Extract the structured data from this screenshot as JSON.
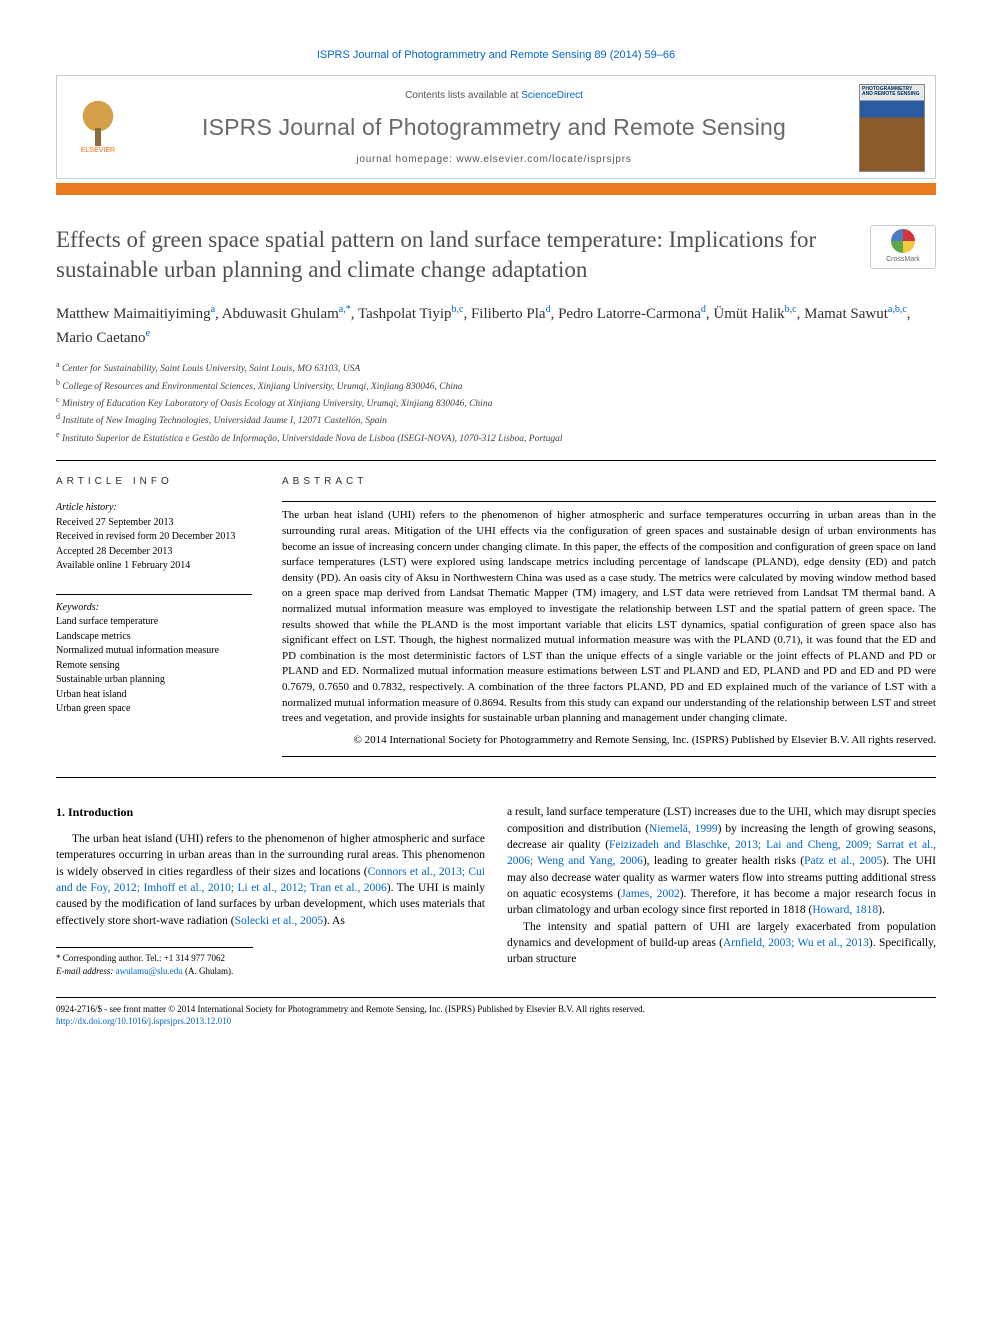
{
  "citation": "ISPRS Journal of Photogrammetry and Remote Sensing 89 (2014) 59–66",
  "header": {
    "contents_prefix": "Contents lists available at ",
    "contents_link": "ScienceDirect",
    "journal_name": "ISPRS Journal of Photogrammetry and Remote Sensing",
    "homepage_label": "journal homepage: ",
    "homepage_url": "www.elsevier.com/locate/isprsjprs",
    "publisher_name": "ELSEVIER",
    "cover_text": "PHOTOGRAMMETRY AND REMOTE SENSING"
  },
  "crossmark_label": "CrossMark",
  "title": "Effects of green space spatial pattern on land surface temperature: Implications for sustainable urban planning and climate change adaptation",
  "authors_html": "Matthew Maimaitiyiming<sup>a</sup>, Abduwasit Ghulam<sup>a,*</sup>, Tashpolat Tiyip<sup>b,c</sup>, Filiberto Pla<sup>d</sup>, Pedro Latorre-Carmona<sup>d</sup>, Ümüt Halik<sup>b,c</sup>, Mamat Sawut<sup>a,b,c</sup>, Mario Caetano<sup>e</sup>",
  "affiliations": [
    "a Center for Sustainability, Saint Louis University, Saint Louis, MO 63103, USA",
    "b College of Resources and Environmental Sciences, Xinjiang University, Urumqi, Xinjiang 830046, China",
    "c Ministry of Education Key Laboratory of Oasis Ecology at Xinjiang University, Urumqi, Xinjiang 830046, China",
    "d Institute of New Imaging Technologies, Universidad Jaume I, 12071 Castellón, Spain",
    "e Instituto Superior de Estatística e Gestão de Informação, Universidade Nova de Lisboa (ISEGI-NOVA), 1070-312 Lisboa, Portugal"
  ],
  "info_head": "ARTICLE INFO",
  "abstract_head": "ABSTRACT",
  "history": {
    "label": "Article history:",
    "received": "Received 27 September 2013",
    "revised": "Received in revised form 20 December 2013",
    "accepted": "Accepted 28 December 2013",
    "online": "Available online 1 February 2014"
  },
  "keywords_label": "Keywords:",
  "keywords": [
    "Land surface temperature",
    "Landscape metrics",
    "Normalized mutual information measure",
    "Remote sensing",
    "Sustainable urban planning",
    "Urban heat island",
    "Urban green space"
  ],
  "abstract": "The urban heat island (UHI) refers to the phenomenon of higher atmospheric and surface temperatures occurring in urban areas than in the surrounding rural areas. Mitigation of the UHI effects via the configuration of green spaces and sustainable design of urban environments has become an issue of increasing concern under changing climate. In this paper, the effects of the composition and configuration of green space on land surface temperatures (LST) were explored using landscape metrics including percentage of landscape (PLAND), edge density (ED) and patch density (PD). An oasis city of Aksu in Northwestern China was used as a case study. The metrics were calculated by moving window method based on a green space map derived from Landsat Thematic Mapper (TM) imagery, and LST data were retrieved from Landsat TM thermal band. A normalized mutual information measure was employed to investigate the relationship between LST and the spatial pattern of green space. The results showed that while the PLAND is the most important variable that elicits LST dynamics, spatial configuration of green space also has significant effect on LST. Though, the highest normalized mutual information measure was with the PLAND (0.71), it was found that the ED and PD combination is the most deterministic factors of LST than the unique effects of a single variable or the joint effects of PLAND and PD or PLAND and ED. Normalized mutual information measure estimations between LST and PLAND and ED, PLAND and PD and ED and PD were 0.7679, 0.7650 and 0.7832, respectively. A combination of the three factors PLAND, PD and ED explained much of the variance of LST with a normalized mutual information measure of 0.8694. Results from this study can expand our understanding of the relationship between LST and street trees and vegetation, and provide insights for sustainable urban planning and management under changing climate.",
  "copyright": "© 2014 International Society for Photogrammetry and Remote Sensing, Inc. (ISPRS) Published by Elsevier B.V. All rights reserved.",
  "intro_heading": "1. Introduction",
  "intro_col1": "The urban heat island (UHI) refers to the phenomenon of higher atmospheric and surface temperatures occurring in urban areas than in the surrounding rural areas. This phenomenon is widely observed in cities regardless of their sizes and locations (<span class=\"ref-link\">Connors et al., 2013; Cui and de Foy, 2012; Imhoff et al., 2010; Li et al., 2012; Tran et al., 2006</span>). The UHI is mainly caused by the modification of land surfaces by urban development, which uses materials that effectively store short-wave radiation (<span class=\"ref-link\">Solecki et al., 2005</span>). As",
  "intro_col2_p1": "a result, land surface temperature (LST) increases due to the UHI, which may disrupt species composition and distribution (<span class=\"ref-link\">Niemelä, 1999</span>) by increasing the length of growing seasons, decrease air quality (<span class=\"ref-link\">Feizizadeh and Blaschke, 2013; Lai and Cheng, 2009; Sarrat et al., 2006; Weng and Yang, 2006</span>), leading to greater health risks (<span class=\"ref-link\">Patz et al., 2005</span>). The UHI may also decrease water quality as warmer waters flow into streams putting additional stress on aquatic ecosystems (<span class=\"ref-link\">James, 2002</span>). Therefore, it has become a major research focus in urban climatology and urban ecology since first reported in 1818 (<span class=\"ref-link\">Howard, 1818</span>).",
  "intro_col2_p2": "The intensity and spatial pattern of UHI are largely exacerbated from population dynamics and development of build-up areas (<span class=\"ref-link\">Arnfield, 2003; Wu et al., 2013</span>). Specifically, urban structure",
  "corresponding": {
    "line1": "* Corresponding author. Tel.: +1 314 977 7062",
    "line2_label": "E-mail address: ",
    "email": "awulamu@slu.edu",
    "line2_suffix": " (A. Ghulam)."
  },
  "footer": {
    "issn": "0924-2716/$ - see front matter © 2014 International Society for Photogrammetry and Remote Sensing, Inc. (ISPRS) Published by Elsevier B.V. All rights reserved.",
    "doi_url": "http://dx.doi.org/10.1016/j.isprsjprs.2013.12.010"
  },
  "colors": {
    "accent_orange": "#e8791e",
    "link_blue": "#0066cc",
    "title_gray": "#505050",
    "journal_gray": "#696969"
  }
}
